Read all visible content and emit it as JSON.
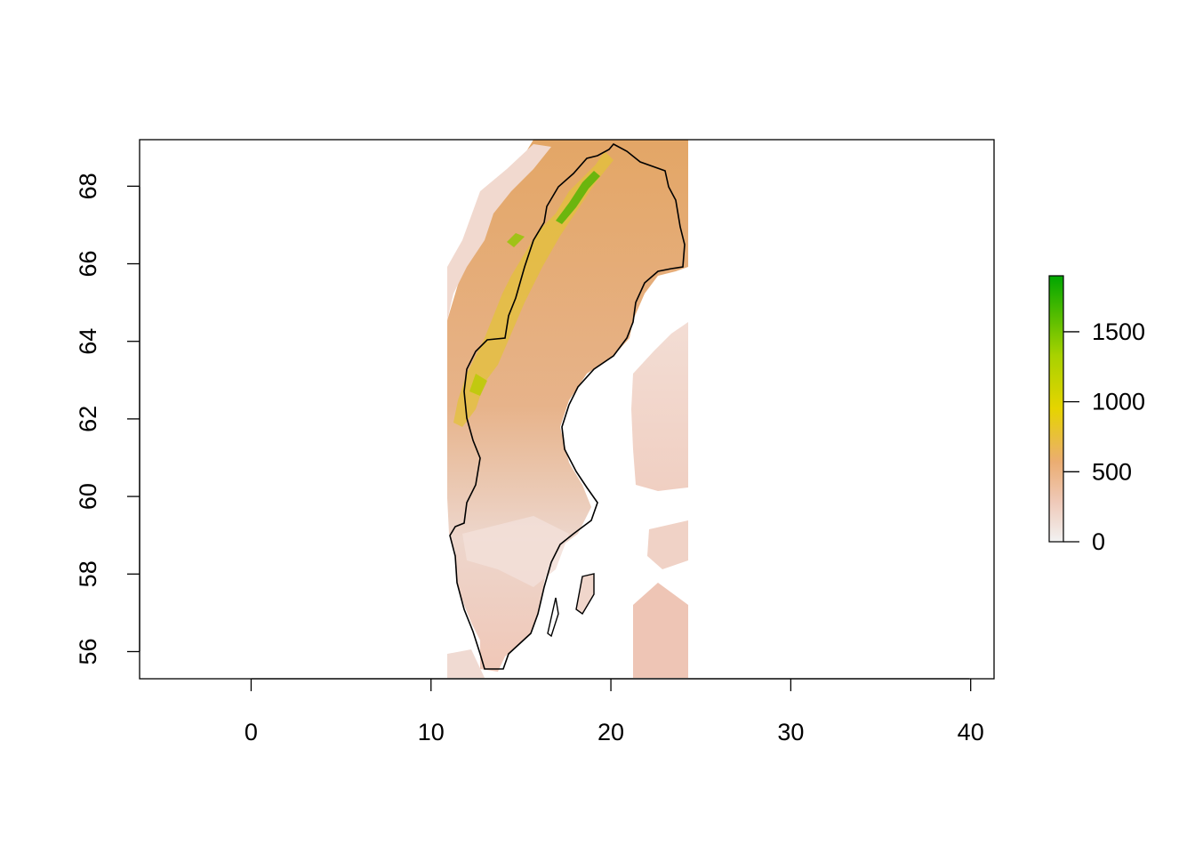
{
  "map": {
    "x_axis": {
      "range": [
        -6.2,
        41.3
      ],
      "ticks": [
        0,
        10,
        20,
        30,
        40
      ],
      "tick_labels": [
        "0",
        "10",
        "20",
        "30",
        "40"
      ]
    },
    "y_axis": {
      "range": [
        55.3,
        69.2
      ],
      "ticks": [
        56,
        58,
        60,
        62,
        64,
        66,
        68
      ],
      "tick_labels": [
        "56",
        "58",
        "60",
        "62",
        "64",
        "66",
        "68"
      ]
    },
    "raster_extent": {
      "lon": [
        11.0,
        24.4
      ],
      "lat": [
        55.3,
        69.2
      ]
    },
    "colors": {
      "low": "#f2f2f2",
      "mid": "#ebad72",
      "high_mid": "#e6d400",
      "high": "#00a600",
      "boundary": "#000000"
    }
  },
  "legend": {
    "range": [
      0,
      1900
    ],
    "ticks": [
      0,
      500,
      1000,
      1500
    ],
    "tick_labels": [
      "0",
      "500",
      "1000",
      "1500"
    ]
  }
}
